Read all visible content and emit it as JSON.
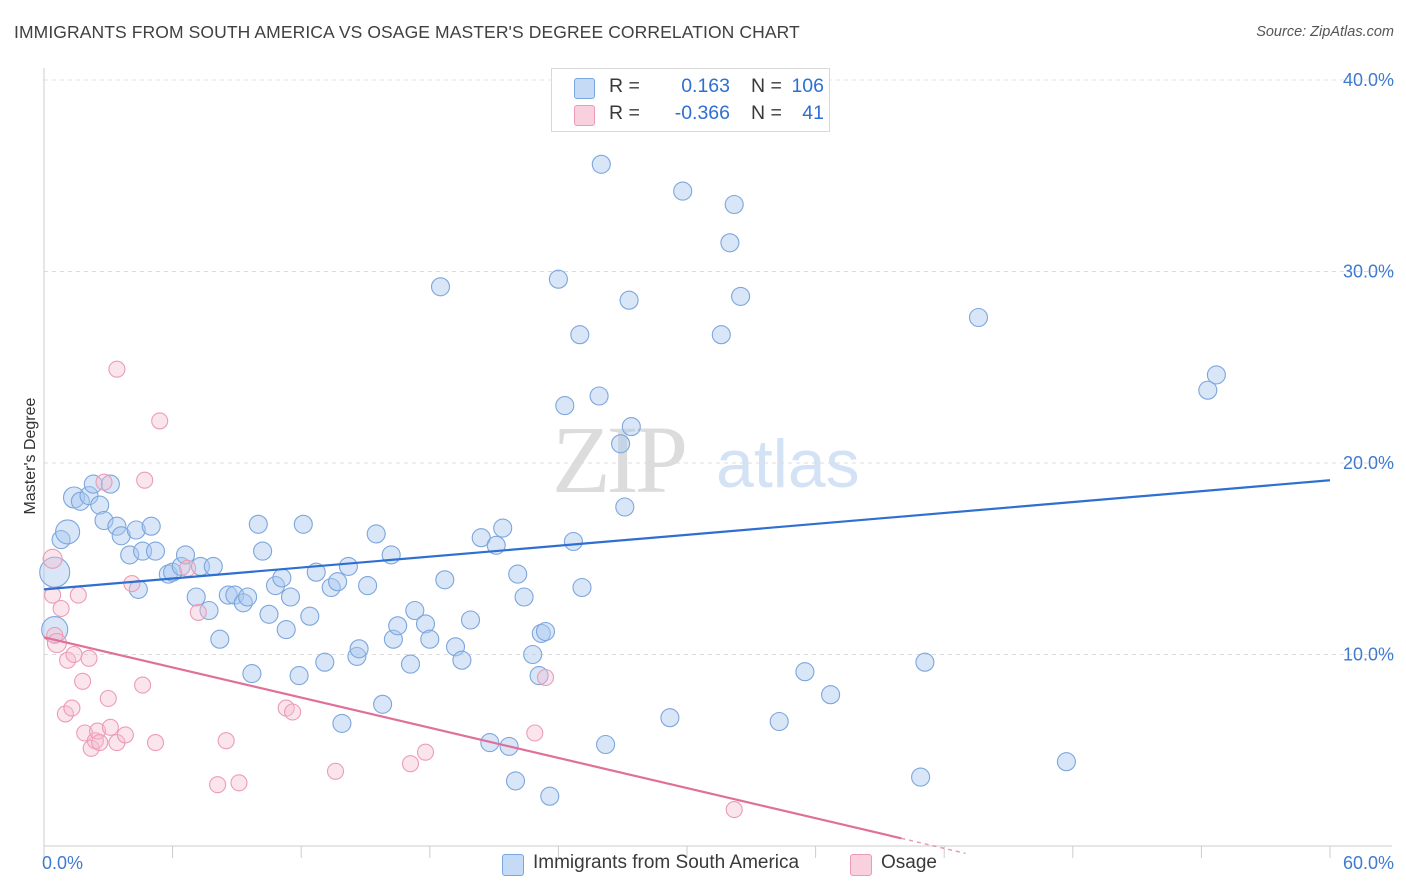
{
  "title": "IMMIGRANTS FROM SOUTH AMERICA VS OSAGE MASTER'S DEGREE CORRELATION CHART",
  "source": "Source: ZipAtlas.com",
  "watermark": {
    "zip": "ZIP",
    "atlas": "atlas"
  },
  "legend": {
    "r_label": "R =",
    "n_label": "N =",
    "series": [
      {
        "name": "Immigrants from South America",
        "r": "0.163",
        "n": "106",
        "fill": "#a9c8f0",
        "stroke": "#7aa6e0"
      },
      {
        "name": "Osage",
        "r": "-0.366",
        "n": "41",
        "fill": "#f6bfd0",
        "stroke": "#ee9ab4"
      }
    ]
  },
  "chart_data": {
    "type": "scatter",
    "title": "IMMIGRANTS FROM SOUTH AMERICA VS OSAGE MASTER'S DEGREE CORRELATION CHART",
    "xlabel": "",
    "ylabel": "Master's Degree",
    "xlim": [
      0,
      60
    ],
    "ylim": [
      0,
      40
    ],
    "x_tick_labels": [
      "0.0%",
      "60.0%"
    ],
    "y_ticks": [
      10,
      20,
      30,
      40
    ],
    "y_tick_labels": [
      "10.0%",
      "20.0%",
      "30.0%",
      "40.0%"
    ],
    "grid": "horizontal dashed",
    "colors": {
      "blue_line": "#2f6fd0",
      "pink_line": "#e0709a",
      "tick_text": "#3f7ad0"
    },
    "series": [
      {
        "name": "Immigrants from South America",
        "trend": {
          "x": [
            0,
            60
          ],
          "y": [
            13.4,
            19.1
          ]
        },
        "points": [
          [
            0.5,
            14.3
          ],
          [
            0.5,
            11.3
          ],
          [
            0.8,
            16.0
          ],
          [
            1.1,
            16.4
          ],
          [
            1.4,
            18.2
          ],
          [
            1.7,
            18.0
          ],
          [
            2.1,
            18.3
          ],
          [
            2.3,
            18.9
          ],
          [
            2.6,
            17.8
          ],
          [
            2.8,
            17.0
          ],
          [
            3.1,
            18.9
          ],
          [
            3.4,
            16.7
          ],
          [
            3.6,
            16.2
          ],
          [
            4.0,
            15.2
          ],
          [
            4.3,
            16.5
          ],
          [
            4.4,
            13.4
          ],
          [
            4.6,
            15.4
          ],
          [
            5.0,
            16.7
          ],
          [
            5.2,
            15.4
          ],
          [
            5.8,
            14.2
          ],
          [
            6.0,
            14.3
          ],
          [
            6.4,
            14.6
          ],
          [
            6.6,
            15.2
          ],
          [
            7.1,
            13.0
          ],
          [
            7.3,
            14.6
          ],
          [
            7.7,
            12.3
          ],
          [
            7.9,
            14.6
          ],
          [
            8.2,
            10.8
          ],
          [
            8.6,
            13.1
          ],
          [
            8.9,
            13.1
          ],
          [
            9.3,
            12.7
          ],
          [
            9.5,
            13.0
          ],
          [
            9.7,
            9.0
          ],
          [
            10.0,
            16.8
          ],
          [
            10.2,
            15.4
          ],
          [
            10.5,
            12.1
          ],
          [
            10.8,
            13.6
          ],
          [
            11.1,
            14.0
          ],
          [
            11.3,
            11.3
          ],
          [
            11.5,
            13.0
          ],
          [
            11.9,
            8.9
          ],
          [
            12.1,
            16.8
          ],
          [
            12.4,
            12.0
          ],
          [
            12.7,
            14.3
          ],
          [
            13.1,
            9.6
          ],
          [
            13.4,
            13.5
          ],
          [
            13.7,
            13.8
          ],
          [
            13.9,
            6.4
          ],
          [
            14.2,
            14.6
          ],
          [
            14.6,
            9.9
          ],
          [
            14.7,
            10.3
          ],
          [
            15.1,
            13.6
          ],
          [
            15.5,
            16.3
          ],
          [
            15.8,
            7.4
          ],
          [
            16.2,
            15.2
          ],
          [
            16.3,
            10.8
          ],
          [
            16.5,
            11.5
          ],
          [
            17.1,
            9.5
          ],
          [
            17.3,
            12.3
          ],
          [
            17.8,
            11.6
          ],
          [
            18.0,
            10.8
          ],
          [
            18.5,
            29.2
          ],
          [
            18.7,
            13.9
          ],
          [
            19.2,
            10.4
          ],
          [
            19.5,
            9.7
          ],
          [
            19.9,
            11.8
          ],
          [
            20.4,
            16.1
          ],
          [
            20.8,
            5.4
          ],
          [
            21.1,
            15.7
          ],
          [
            21.4,
            16.6
          ],
          [
            21.7,
            5.2
          ],
          [
            22.0,
            3.4
          ],
          [
            22.1,
            14.2
          ],
          [
            22.4,
            13.0
          ],
          [
            22.8,
            10.0
          ],
          [
            23.1,
            8.9
          ],
          [
            23.2,
            11.1
          ],
          [
            23.4,
            11.2
          ],
          [
            23.6,
            2.6
          ],
          [
            24.0,
            29.6
          ],
          [
            24.3,
            23.0
          ],
          [
            24.7,
            15.9
          ],
          [
            25.0,
            26.7
          ],
          [
            25.1,
            13.5
          ],
          [
            25.9,
            23.5
          ],
          [
            26.0,
            35.6
          ],
          [
            26.2,
            5.3
          ],
          [
            26.9,
            21.0
          ],
          [
            27.1,
            17.7
          ],
          [
            27.3,
            28.5
          ],
          [
            27.4,
            21.9
          ],
          [
            29.2,
            6.7
          ],
          [
            29.8,
            34.2
          ],
          [
            31.6,
            26.7
          ],
          [
            32.0,
            31.5
          ],
          [
            32.2,
            33.5
          ],
          [
            32.5,
            28.7
          ],
          [
            34.3,
            6.5
          ],
          [
            35.5,
            9.1
          ],
          [
            36.7,
            7.9
          ],
          [
            40.9,
            3.6
          ],
          [
            41.1,
            9.6
          ],
          [
            43.6,
            27.6
          ],
          [
            47.7,
            4.4
          ],
          [
            54.3,
            23.8
          ],
          [
            54.7,
            24.6
          ]
        ]
      },
      {
        "name": "Osage",
        "trend": {
          "x": [
            0,
            40
          ],
          "y": [
            10.9,
            0.4
          ]
        },
        "points": [
          [
            0.4,
            15.0
          ],
          [
            0.4,
            13.1
          ],
          [
            0.5,
            11.0
          ],
          [
            0.6,
            10.6
          ],
          [
            0.8,
            12.4
          ],
          [
            1.0,
            6.9
          ],
          [
            1.1,
            9.7
          ],
          [
            1.3,
            7.2
          ],
          [
            1.4,
            10.0
          ],
          [
            1.6,
            13.1
          ],
          [
            1.8,
            8.6
          ],
          [
            1.9,
            5.9
          ],
          [
            2.1,
            9.8
          ],
          [
            2.2,
            5.1
          ],
          [
            2.4,
            5.5
          ],
          [
            2.5,
            6.0
          ],
          [
            2.6,
            5.4
          ],
          [
            2.8,
            19.0
          ],
          [
            3.0,
            7.7
          ],
          [
            3.1,
            6.2
          ],
          [
            3.4,
            5.4
          ],
          [
            3.4,
            24.9
          ],
          [
            3.8,
            5.8
          ],
          [
            4.1,
            13.7
          ],
          [
            4.6,
            8.4
          ],
          [
            4.7,
            19.1
          ],
          [
            5.2,
            5.4
          ],
          [
            5.4,
            22.2
          ],
          [
            6.7,
            14.5
          ],
          [
            7.2,
            12.2
          ],
          [
            8.1,
            3.2
          ],
          [
            8.5,
            5.5
          ],
          [
            9.1,
            3.3
          ],
          [
            11.3,
            7.2
          ],
          [
            11.6,
            7.0
          ],
          [
            13.6,
            3.9
          ],
          [
            17.1,
            4.3
          ],
          [
            17.8,
            4.9
          ],
          [
            22.9,
            5.9
          ],
          [
            23.4,
            8.8
          ],
          [
            32.2,
            1.9
          ]
        ]
      }
    ]
  }
}
